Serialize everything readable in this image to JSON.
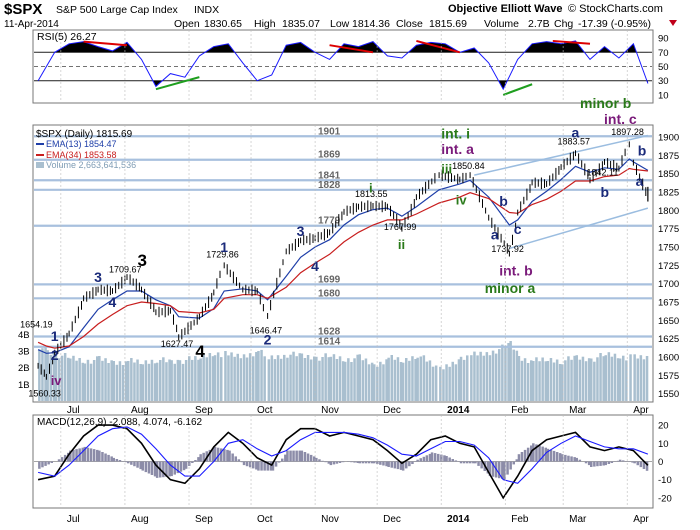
{
  "header": {
    "symbol": "$SPX",
    "name": "S&P 500 Large Cap Index",
    "exchange": "INDX",
    "date": "11-Apr-2014",
    "open_label": "Open",
    "open": "1830.65",
    "high_label": "High",
    "high": "1835.07",
    "low_label": "Low",
    "low": "1814.36",
    "close_label": "Close",
    "close": "1815.69",
    "volume_label": "Volume",
    "volume": "2.7B",
    "chg_label": "Chg",
    "chg": "-17.39 (-0.95%)",
    "author": "Objective Elliott Wave",
    "credit": "© StockCharts.com"
  },
  "colors": {
    "price": "#000000",
    "ema13": "#1e3ea8",
    "ema34": "#c81e1e",
    "volume": "#a9bfcf",
    "level": "#a8c0de",
    "rsi_line": "#1a1aff",
    "rsi_zone": "#000000",
    "macd": "#000000",
    "signal": "#1a1aff",
    "hist": "#8c8ca8",
    "wave_green": "#2a7a1a",
    "wave_purple": "#7a1a7a",
    "wave_blue": "#1a2a7a",
    "trend_red": "#dd0000",
    "trend_green": "#1e9e1e",
    "channel": "#9bbde0"
  },
  "chart_data": [
    {
      "type": "line",
      "panel": "rsi",
      "label": "RSI(5) 26.27",
      "ylim": [
        0,
        100
      ],
      "ticks": [
        10,
        30,
        50,
        70,
        90
      ],
      "x": [
        "2013-06-20",
        "2013-06-28",
        "2013-07-05",
        "2013-07-12",
        "2013-07-19",
        "2013-07-26",
        "2013-08-02",
        "2013-08-09",
        "2013-08-16",
        "2013-08-23",
        "2013-08-30",
        "2013-09-06",
        "2013-09-13",
        "2013-09-20",
        "2013-09-27",
        "2013-10-04",
        "2013-10-11",
        "2013-10-18",
        "2013-10-25",
        "2013-11-01",
        "2013-11-08",
        "2013-11-15",
        "2013-11-22",
        "2013-11-29",
        "2013-12-06",
        "2013-12-13",
        "2013-12-20",
        "2013-12-27",
        "2014-01-03",
        "2014-01-10",
        "2014-01-17",
        "2014-01-24",
        "2014-01-31",
        "2014-02-07",
        "2014-02-14",
        "2014-02-21",
        "2014-02-28",
        "2014-03-07",
        "2014-03-14",
        "2014-03-21",
        "2014-03-28",
        "2014-04-04",
        "2014-04-11"
      ],
      "values": [
        30,
        70,
        82,
        85,
        78,
        72,
        84,
        60,
        22,
        40,
        35,
        65,
        78,
        82,
        55,
        30,
        38,
        80,
        84,
        70,
        60,
        82,
        78,
        85,
        65,
        62,
        80,
        84,
        82,
        70,
        76,
        55,
        18,
        60,
        82,
        85,
        82,
        86,
        60,
        78,
        62,
        82,
        26
      ]
    },
    {
      "type": "line",
      "panel": "price",
      "label": "$SPX (Daily) 1815.69",
      "ylim": [
        1540,
        1915
      ],
      "ticks": [
        1550,
        1575,
        1600,
        1625,
        1650,
        1675,
        1700,
        1725,
        1750,
        1775,
        1800,
        1825,
        1850,
        1875,
        1900
      ],
      "x_ticks": [
        "Jul",
        "Aug",
        "Sep",
        "Oct",
        "Nov",
        "Dec",
        "2014",
        "Feb",
        "Mar",
        "Apr"
      ],
      "x": [
        "2013-06-20",
        "2013-06-24",
        "2013-06-28",
        "2013-07-05",
        "2013-07-12",
        "2013-07-19",
        "2013-07-26",
        "2013-08-02",
        "2013-08-09",
        "2013-08-16",
        "2013-08-23",
        "2013-08-27",
        "2013-09-06",
        "2013-09-13",
        "2013-09-18",
        "2013-09-27",
        "2013-10-04",
        "2013-10-09",
        "2013-10-18",
        "2013-10-25",
        "2013-11-01",
        "2013-11-08",
        "2013-11-15",
        "2013-11-22",
        "2013-11-29",
        "2013-12-06",
        "2013-12-13",
        "2013-12-20",
        "2013-12-31",
        "2014-01-10",
        "2014-01-15",
        "2014-01-24",
        "2014-02-03",
        "2014-02-07",
        "2014-02-14",
        "2014-02-21",
        "2014-02-28",
        "2014-03-07",
        "2014-03-14",
        "2014-03-21",
        "2014-03-28",
        "2014-04-02",
        "2014-04-04",
        "2014-04-11"
      ],
      "values": [
        1588,
        1573,
        1606,
        1632,
        1680,
        1692,
        1690,
        1709,
        1692,
        1661,
        1663,
        1627,
        1655,
        1688,
        1725,
        1692,
        1690,
        1656,
        1744,
        1759,
        1762,
        1770,
        1798,
        1805,
        1806,
        1805,
        1775,
        1818,
        1848,
        1842,
        1848,
        1790,
        1741,
        1797,
        1838,
        1836,
        1859,
        1878,
        1841,
        1866,
        1857,
        1890,
        1865,
        1815.69
      ],
      "series": [
        {
          "name": "EMA(13) 1854.47",
          "values": [
            1610,
            1605,
            1606,
            1614,
            1640,
            1665,
            1678,
            1690,
            1690,
            1678,
            1670,
            1655,
            1653,
            1666,
            1690,
            1693,
            1690,
            1678,
            1710,
            1736,
            1750,
            1760,
            1780,
            1794,
            1801,
            1803,
            1792,
            1805,
            1828,
            1836,
            1841,
            1818,
            1780,
            1787,
            1812,
            1826,
            1842,
            1860,
            1852,
            1858,
            1856,
            1870,
            1866,
            1854.47
          ]
        },
        {
          "name": "EMA(34) 1853.58",
          "values": [
            1620,
            1615,
            1612,
            1615,
            1628,
            1645,
            1658,
            1670,
            1675,
            1673,
            1670,
            1662,
            1660,
            1665,
            1680,
            1685,
            1685,
            1680,
            1695,
            1715,
            1728,
            1740,
            1757,
            1770,
            1780,
            1787,
            1787,
            1795,
            1810,
            1818,
            1824,
            1816,
            1797,
            1796,
            1808,
            1815,
            1826,
            1840,
            1840,
            1846,
            1848,
            1857,
            1856,
            1853.58
          ]
        }
      ],
      "volume": {
        "label": "Volume 2,663,641,536",
        "values": [
          3.3,
          2.9,
          2.8,
          2.6,
          2.4,
          2.5,
          2.3,
          2.4,
          2.3,
          2.5,
          2.3,
          2.4,
          2.6,
          2.9,
          2.8,
          2.7,
          3.0,
          2.6,
          2.8,
          2.7,
          2.6,
          2.7,
          2.5,
          2.6,
          2.1,
          2.6,
          2.4,
          2.8,
          1.9,
          2.6,
          2.8,
          2.9,
          3.4,
          2.6,
          2.4,
          2.5,
          2.4,
          2.6,
          2.5,
          2.8,
          2.7,
          2.6,
          2.7,
          2.7
        ],
        "axis_ticks": [
          "1B",
          "2B",
          "3B",
          "4B"
        ],
        "axis_values": [
          1,
          2,
          3,
          4
        ]
      },
      "levels": [
        {
          "label": "1901",
          "value": 1901
        },
        {
          "label": "1869",
          "value": 1869
        },
        {
          "label": "1841",
          "value": 1841
        },
        {
          "label": "1828",
          "value": 1828
        },
        {
          "label": "1779",
          "value": 1779
        },
        {
          "label": "1699",
          "value": 1699
        },
        {
          "label": "1680",
          "value": 1680
        },
        {
          "label": "1628",
          "value": 1628
        },
        {
          "label": "1614",
          "value": 1614
        }
      ],
      "price_labels": [
        {
          "text": "1654.19",
          "x": "2013-06-20",
          "y": 1654
        },
        {
          "text": "1560.33",
          "x": "2013-06-24",
          "y": 1560
        },
        {
          "text": "1709.67",
          "x": "2013-08-02",
          "y": 1710
        },
        {
          "text": "1627.47",
          "x": "2013-08-27",
          "y": 1627
        },
        {
          "text": "1729.86",
          "x": "2013-09-18",
          "y": 1730
        },
        {
          "text": "1646.47",
          "x": "2013-10-09",
          "y": 1646
        },
        {
          "text": "1813.55",
          "x": "2013-11-29",
          "y": 1813
        },
        {
          "text": "1767.99",
          "x": "2013-12-13",
          "y": 1768
        },
        {
          "text": "1850.84",
          "x": "2014-01-15",
          "y": 1851
        },
        {
          "text": "1737.92",
          "x": "2014-02-03",
          "y": 1738
        },
        {
          "text": "1883.57",
          "x": "2014-03-07",
          "y": 1884
        },
        {
          "text": "1897.28",
          "x": "2014-04-02",
          "y": 1897
        },
        {
          "text": "1842.11",
          "x": "2014-03-21",
          "y": 1842
        }
      ],
      "wave_labels": [
        {
          "text": "1",
          "x": "2013-06-28",
          "y": 1622,
          "color": "wave_blue",
          "size": 14
        },
        {
          "text": "2",
          "x": "2013-06-28",
          "y": 1596,
          "color": "wave_blue",
          "size": 14
        },
        {
          "text": "iv",
          "x": "2013-06-28",
          "y": 1562,
          "color": "wave_purple",
          "size": 13
        },
        {
          "text": "3",
          "x": "2013-07-19",
          "y": 1702,
          "color": "wave_blue",
          "size": 14
        },
        {
          "text": "4",
          "x": "2013-07-26",
          "y": 1668,
          "color": "wave_blue",
          "size": 14
        },
        {
          "text": "3",
          "x": "2013-08-09",
          "y": 1724,
          "color": "#000000",
          "size": 17
        },
        {
          "text": "4",
          "x": "2013-09-06",
          "y": 1600,
          "color": "#000000",
          "size": 17
        },
        {
          "text": "1",
          "x": "2013-09-18",
          "y": 1743,
          "color": "wave_blue",
          "size": 14
        },
        {
          "text": "2",
          "x": "2013-10-09",
          "y": 1617,
          "color": "wave_blue",
          "size": 14
        },
        {
          "text": "3",
          "x": "2013-10-25",
          "y": 1765,
          "color": "wave_blue",
          "size": 14
        },
        {
          "text": "4",
          "x": "2013-11-01",
          "y": 1717,
          "color": "wave_blue",
          "size": 14
        },
        {
          "text": "i",
          "x": "2013-11-29",
          "y": 1824,
          "color": "wave_green",
          "size": 13
        },
        {
          "text": "ii",
          "x": "2013-12-13",
          "y": 1747,
          "color": "wave_green",
          "size": 13
        },
        {
          "text": "iii",
          "x": "2014-01-03",
          "y": 1850,
          "color": "wave_green",
          "size": 13
        },
        {
          "text": "iv",
          "x": "2014-01-10",
          "y": 1808,
          "color": "wave_green",
          "size": 13
        },
        {
          "text": "int. i",
          "x": "2014-01-03",
          "y": 1898,
          "color": "wave_green",
          "size": 14
        },
        {
          "text": "int. a",
          "x": "2014-01-03",
          "y": 1877,
          "color": "wave_purple",
          "size": 14
        },
        {
          "text": "b",
          "x": "2014-01-31",
          "y": 1806,
          "color": "wave_blue",
          "size": 14
        },
        {
          "text": "a",
          "x": "2014-01-27",
          "y": 1760,
          "color": "wave_blue",
          "size": 14
        },
        {
          "text": "c",
          "x": "2014-02-07",
          "y": 1768,
          "color": "wave_blue",
          "size": 14
        },
        {
          "text": "int. b",
          "x": "2014-01-31",
          "y": 1711,
          "color": "wave_purple",
          "size": 14
        },
        {
          "text": "minor a",
          "x": "2014-01-24",
          "y": 1687,
          "color": "wave_green",
          "size": 14
        },
        {
          "text": "a",
          "x": "2014-03-07",
          "y": 1899,
          "color": "wave_blue",
          "size": 14
        },
        {
          "text": "b",
          "x": "2014-04-08",
          "y": 1875,
          "color": "wave_blue",
          "size": 14
        },
        {
          "text": "b",
          "x": "2014-03-21",
          "y": 1818,
          "color": "wave_blue",
          "size": 14
        },
        {
          "text": "a",
          "x": "2014-04-07",
          "y": 1833,
          "color": "wave_blue",
          "size": 14
        }
      ]
    },
    {
      "type": "line",
      "panel": "macd",
      "label": "MACD(12,26,9) -2.088, 4.074, -6.162",
      "ylim": [
        -25,
        25
      ],
      "ticks": [
        -20,
        -10,
        0,
        10,
        20
      ],
      "x": [
        "2013-06-20",
        "2013-06-28",
        "2013-07-05",
        "2013-07-12",
        "2013-07-19",
        "2013-07-26",
        "2013-08-02",
        "2013-08-09",
        "2013-08-16",
        "2013-08-23",
        "2013-08-30",
        "2013-09-06",
        "2013-09-13",
        "2013-09-20",
        "2013-09-27",
        "2013-10-04",
        "2013-10-11",
        "2013-10-18",
        "2013-10-25",
        "2013-11-01",
        "2013-11-08",
        "2013-11-15",
        "2013-11-22",
        "2013-11-29",
        "2013-12-06",
        "2013-12-13",
        "2013-12-20",
        "2013-12-27",
        "2014-01-03",
        "2014-01-10",
        "2014-01-17",
        "2014-01-24",
        "2014-01-31",
        "2014-02-07",
        "2014-02-14",
        "2014-02-21",
        "2014-02-28",
        "2014-03-07",
        "2014-03-14",
        "2014-03-21",
        "2014-03-28",
        "2014-04-04",
        "2014-04-11"
      ],
      "series": [
        {
          "name": "MACD",
          "values": [
            -10,
            -8,
            4,
            14,
            20,
            20,
            18,
            10,
            -2,
            -10,
            -12,
            -4,
            8,
            16,
            10,
            2,
            -2,
            12,
            18,
            18,
            14,
            16,
            14,
            12,
            6,
            -1,
            4,
            12,
            14,
            10,
            8,
            -6,
            -20,
            -8,
            6,
            12,
            14,
            16,
            8,
            6,
            8,
            6,
            -2.088
          ]
        },
        {
          "name": "Signal",
          "values": [
            -6,
            -8,
            -2,
            6,
            14,
            18,
            19,
            15,
            7,
            -2,
            -8,
            -8,
            0,
            10,
            12,
            7,
            3,
            6,
            12,
            16,
            16,
            16,
            15,
            13,
            9,
            4,
            3,
            7,
            11,
            11,
            9,
            2,
            -10,
            -12,
            -4,
            5,
            10,
            14,
            11,
            8,
            7,
            7,
            4.074
          ]
        }
      ],
      "histogram": [
        -4,
        0,
        6,
        8,
        6,
        2,
        -1,
        -5,
        -9,
        -8,
        -4,
        4,
        8,
        6,
        -2,
        -5,
        -5,
        6,
        6,
        2,
        -2,
        0,
        -1,
        -1,
        -3,
        -5,
        1,
        5,
        3,
        -1,
        -1,
        -8,
        -10,
        4,
        10,
        7,
        4,
        2,
        -3,
        -2,
        1,
        -1,
        -6.162
      ]
    }
  ]
}
